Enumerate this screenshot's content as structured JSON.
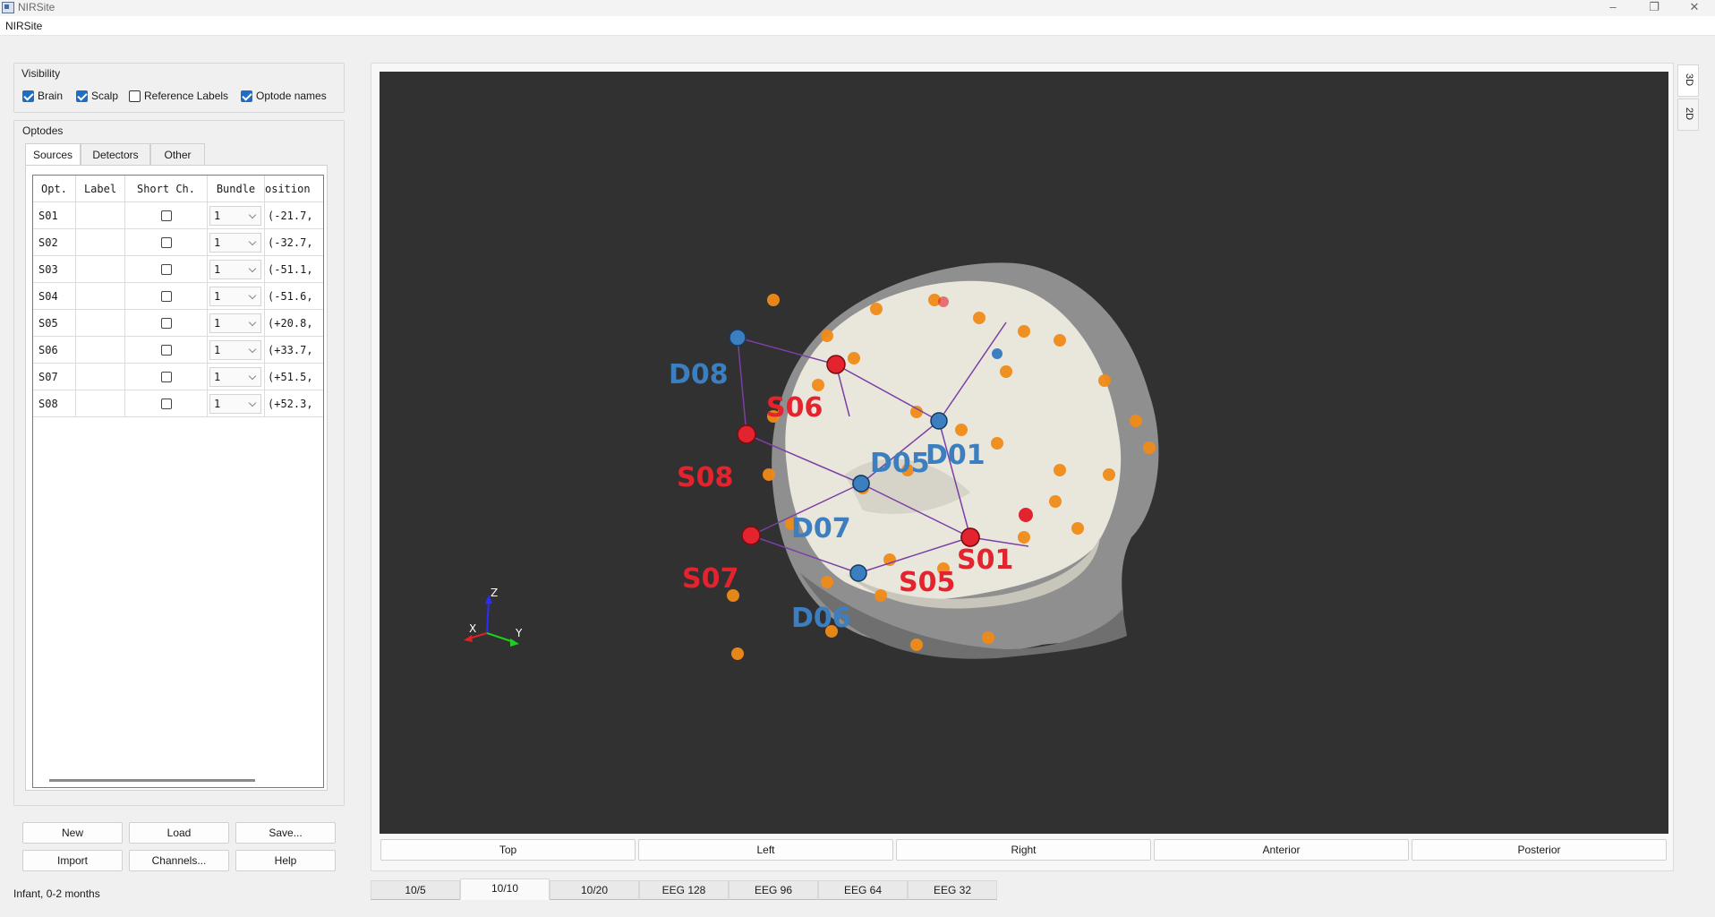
{
  "window": {
    "title": "NIRSite",
    "menu_title": "NIRSite",
    "minimize_glyph": "–",
    "maximize_glyph": "❐",
    "close_glyph": "✕"
  },
  "visibility": {
    "title": "Visibility",
    "items": [
      {
        "label": "Brain",
        "checked": true
      },
      {
        "label": "Scalp",
        "checked": true
      },
      {
        "label": "Reference Labels",
        "checked": false
      },
      {
        "label": "Optode names",
        "checked": true
      }
    ]
  },
  "optodes": {
    "title": "Optodes",
    "tabs": [
      "Sources",
      "Detectors",
      "Other"
    ],
    "active_tab": "Sources",
    "columns": [
      "Opt.",
      "Label",
      "Short Ch.",
      "Bundle",
      "osition"
    ],
    "rows": [
      {
        "opt": "S01",
        "label": "",
        "short": false,
        "bundle": "1",
        "position": "(-21.7,"
      },
      {
        "opt": "S02",
        "label": "",
        "short": false,
        "bundle": "1",
        "position": "(-32.7,"
      },
      {
        "opt": "S03",
        "label": "",
        "short": false,
        "bundle": "1",
        "position": "(-51.1,"
      },
      {
        "opt": "S04",
        "label": "",
        "short": false,
        "bundle": "1",
        "position": "(-51.6,"
      },
      {
        "opt": "S05",
        "label": "",
        "short": false,
        "bundle": "1",
        "position": "(+20.8,"
      },
      {
        "opt": "S06",
        "label": "",
        "short": false,
        "bundle": "1",
        "position": "(+33.7,"
      },
      {
        "opt": "S07",
        "label": "",
        "short": false,
        "bundle": "1",
        "position": "(+51.5,"
      },
      {
        "opt": "S08",
        "label": "",
        "short": false,
        "bundle": "1",
        "position": "(+52.3,"
      }
    ]
  },
  "buttons": {
    "new": "New",
    "load": "Load",
    "save": "Save...",
    "import": "Import",
    "channels": "Channels...",
    "help": "Help"
  },
  "status": "Infant, 0-2 months",
  "view_buttons": [
    "Top",
    "Left",
    "Right",
    "Anterior",
    "Posterior"
  ],
  "side_tabs": {
    "tab_3d": "3D",
    "tab_2d": "2D"
  },
  "bottom_tabs": [
    "10/5",
    "10/10",
    "10/20",
    "EEG 128",
    "EEG 96",
    "EEG 64",
    "EEG 32"
  ],
  "active_bottom_tab": "10/10",
  "scene": {
    "sources": [
      "S01",
      "S05",
      "S06",
      "S07",
      "S08"
    ],
    "detectors": [
      "D01",
      "D05",
      "D06",
      "D07",
      "D08"
    ],
    "axes": {
      "x": "X",
      "y": "Y",
      "z": "Z"
    },
    "source_color": "#e3232e",
    "detector_color": "#3c7fc0",
    "reference_color": "#f08a17",
    "background": "#313131"
  }
}
